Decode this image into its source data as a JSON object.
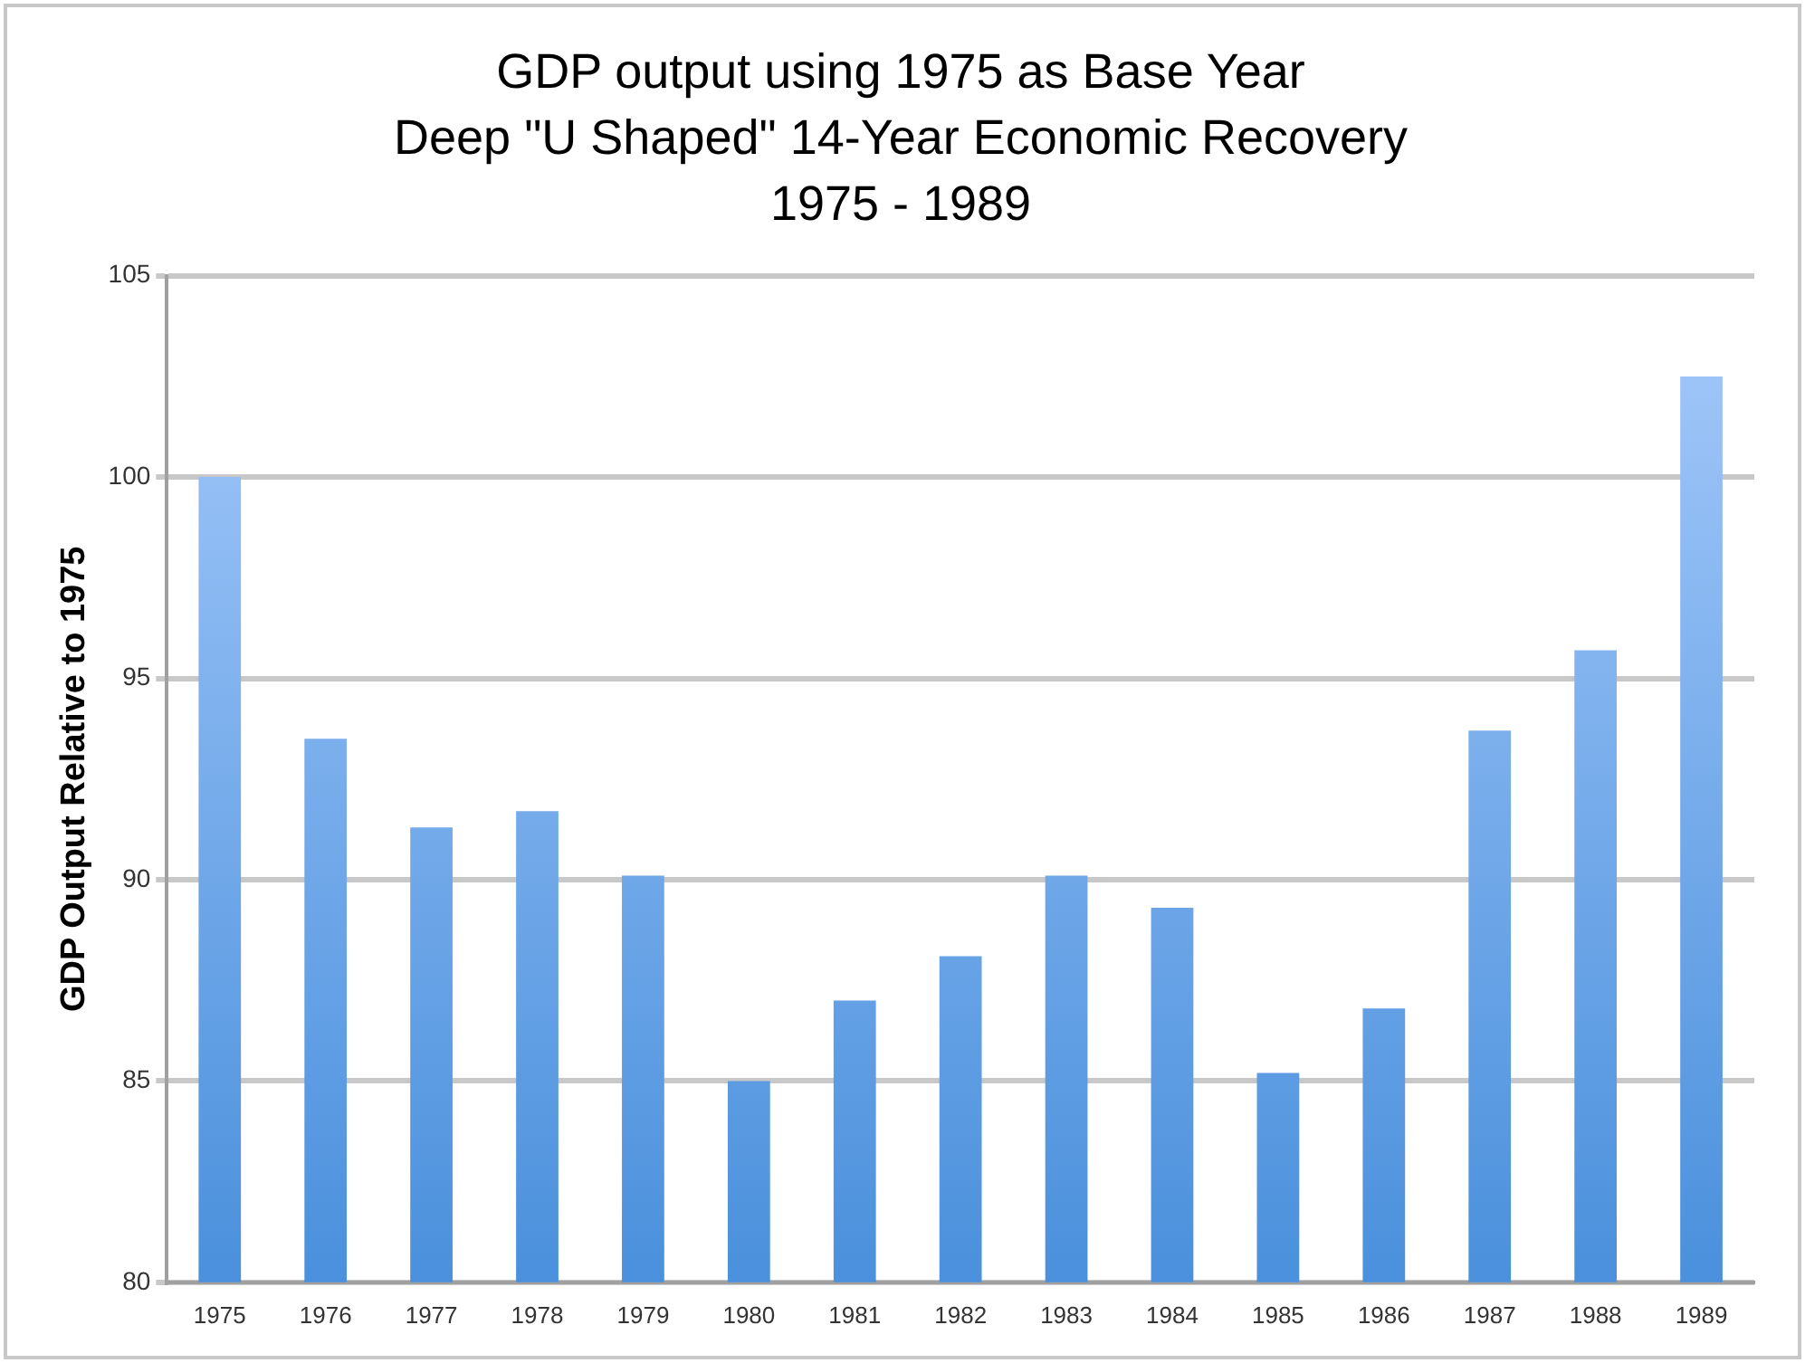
{
  "chart_data": {
    "type": "bar",
    "title": "GDP output using 1975 as Base Year\nDeep \"U Shaped\" 14-Year Economic Recovery\n1975 - 1989",
    "ylabel": "GDP Output Relative to 1975",
    "categories": [
      "1975",
      "1976",
      "1977",
      "1978",
      "1979",
      "1980",
      "1981",
      "1982",
      "1983",
      "1984",
      "1985",
      "1986",
      "1987",
      "1988",
      "1989"
    ],
    "values": [
      100,
      93.5,
      91.3,
      91.7,
      90.1,
      85.0,
      87.0,
      88.1,
      90.1,
      89.3,
      85.2,
      86.8,
      93.7,
      95.7,
      102.5
    ],
    "color": "#4a90dc",
    "ylim": [
      80,
      105
    ],
    "yticks": [
      80,
      85,
      90,
      95,
      100,
      105
    ],
    "grid": "y",
    "legend": false
  }
}
